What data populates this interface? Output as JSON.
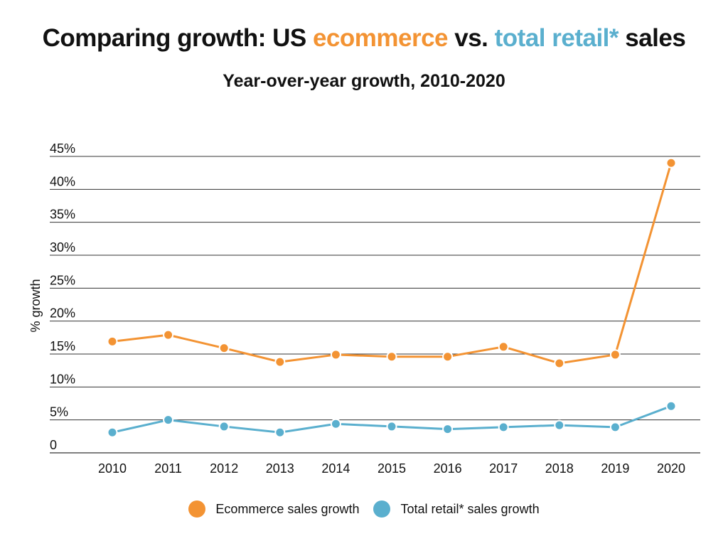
{
  "title": {
    "part1": "Comparing growth: US ",
    "part2": "ecommerce",
    "part3": " vs. ",
    "part4": "total retail*",
    "part5": " sales"
  },
  "subtitle": "Year-over-year growth, 2010-2020",
  "colors": {
    "ecommerce": "#f39333",
    "retail": "#5aafce",
    "grid": "#333333",
    "text": "#111111"
  },
  "chart_data": {
    "type": "line",
    "ylabel": "% growth",
    "xlabel": "",
    "ylim": [
      0,
      45
    ],
    "yticks": [
      0,
      5,
      10,
      15,
      20,
      25,
      30,
      35,
      40,
      45
    ],
    "ytick_labels": [
      "0",
      "5%",
      "10%",
      "15%",
      "20%",
      "25%",
      "30%",
      "35%",
      "40%",
      "45%"
    ],
    "x": [
      "2010",
      "2011",
      "2012",
      "2013",
      "2014",
      "2015",
      "2016",
      "2017",
      "2018",
      "2019",
      "2020"
    ],
    "grid": true,
    "legend_position": "bottom",
    "series": [
      {
        "name": "Ecommerce sales growth",
        "color_key": "ecommerce",
        "values": [
          16.9,
          17.9,
          15.9,
          13.8,
          14.9,
          14.6,
          14.6,
          16.1,
          13.6,
          14.9,
          44.0
        ]
      },
      {
        "name": "Total retail* sales growth",
        "color_key": "retail",
        "values": [
          3.1,
          5.0,
          4.0,
          3.1,
          4.4,
          4.0,
          3.6,
          3.9,
          4.2,
          3.9,
          7.1
        ]
      }
    ]
  }
}
